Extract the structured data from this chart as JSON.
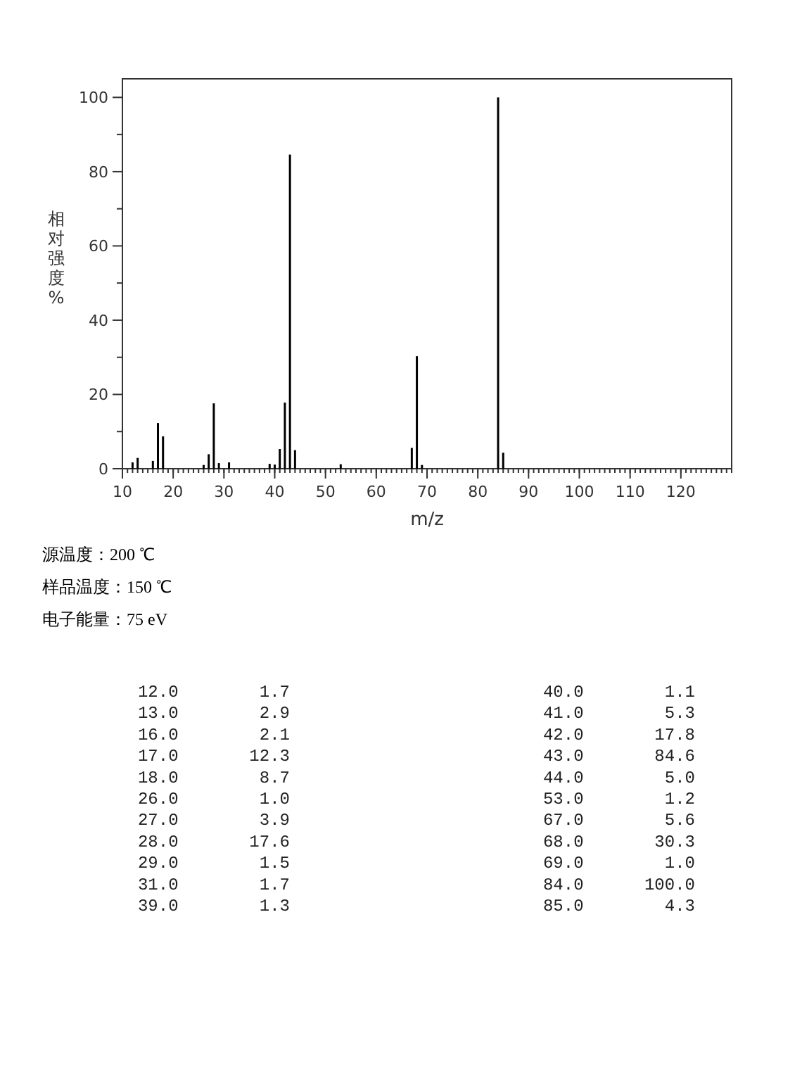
{
  "chart_data": {
    "type": "bar",
    "xlabel": "m/z",
    "ylabel": "相对强度%",
    "annotations": [
      "源温度：200 ℃",
      "样品温度：150 ℃",
      "电子能量：75 eV",
      "12.0        1.7",
      "13.0        2.9",
      "16.0        2.1",
      "17.0       12.3",
      "18.0        8.7",
      "26.0        1.0",
      "27.0        3.9",
      "28.0       17.6",
      "29.0        1.5",
      "31.0        1.7",
      "39.0        1.3",
      "40.0        1.1",
      "41.0        5.3",
      "42.0       17.8",
      "43.0       84.6",
      "44.0        5.0",
      "53.0        1.2",
      "67.0        5.6",
      "68.0       30.3",
      "69.0        1.0",
      "84.0      100.0",
      "85.0        4.3"
    ],
    "x": [
      12,
      13,
      16,
      17,
      18,
      26,
      27,
      28,
      29,
      31,
      39,
      40,
      41,
      42,
      43,
      44,
      53,
      67,
      68,
      69,
      84,
      85
    ],
    "values": [
      1.7,
      2.9,
      2.1,
      12.3,
      8.7,
      1.0,
      3.9,
      17.6,
      1.5,
      1.7,
      1.3,
      1.1,
      5.3,
      17.8,
      84.6,
      5.0,
      1.2,
      5.6,
      30.3,
      1.0,
      100.0,
      4.3
    ],
    "color": "#000000",
    "xlim": [
      10,
      130
    ],
    "xticks": [
      10,
      20,
      30,
      40,
      50,
      60,
      70,
      80,
      90,
      100,
      110,
      120
    ],
    "ylim": [
      0,
      105
    ],
    "yticks": [
      0,
      20,
      40,
      60,
      80,
      100
    ]
  }
}
